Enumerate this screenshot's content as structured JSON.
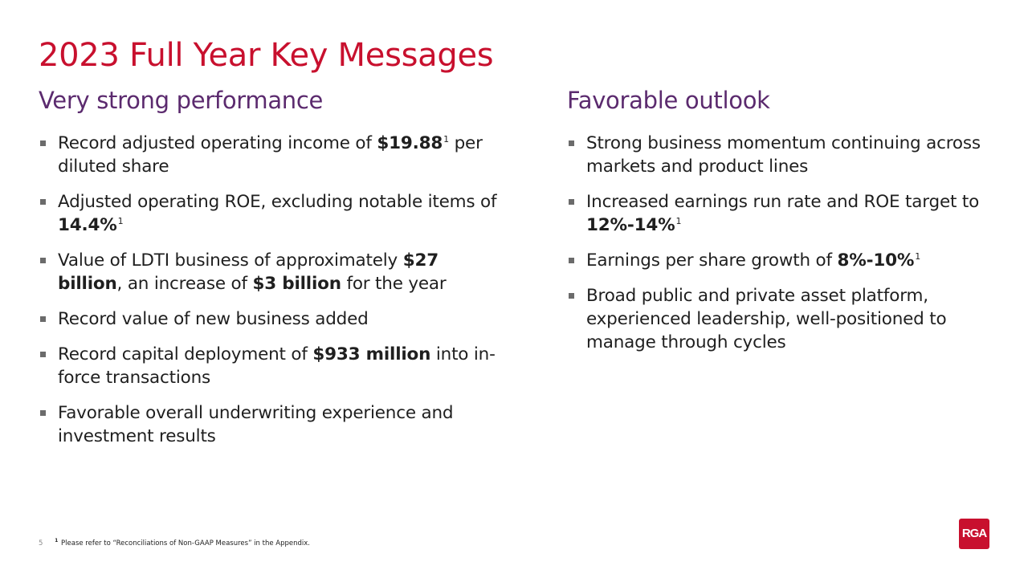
{
  "title": "2023 Full Year Key Messages",
  "left": {
    "heading": "Very strong performance",
    "bullets": [
      {
        "parts": [
          {
            "t": "Record adjusted operating income of "
          },
          {
            "t": "$19.88",
            "b": true
          },
          {
            "t": "1",
            "sup": true
          },
          {
            "t": " per diluted share"
          }
        ]
      },
      {
        "parts": [
          {
            "t": "Adjusted operating ROE, excluding notable items of "
          },
          {
            "t": "14.4%",
            "b": true
          },
          {
            "t": "1",
            "sup": true
          }
        ]
      },
      {
        "parts": [
          {
            "t": "Value of LDTI business of approximately "
          },
          {
            "t": "$27 billion",
            "b": true
          },
          {
            "t": ", an increase of "
          },
          {
            "t": "$3 billion",
            "b": true
          },
          {
            "t": " for the year"
          }
        ]
      },
      {
        "parts": [
          {
            "t": "Record value of new business added"
          }
        ]
      },
      {
        "parts": [
          {
            "t": "Record capital deployment of "
          },
          {
            "t": "$933 million",
            "b": true
          },
          {
            "t": " into in-force transactions"
          }
        ]
      },
      {
        "parts": [
          {
            "t": "Favorable overall underwriting experience and investment results"
          }
        ]
      }
    ]
  },
  "right": {
    "heading": "Favorable outlook",
    "bullets": [
      {
        "parts": [
          {
            "t": "Strong business momentum continuing across markets and product lines"
          }
        ]
      },
      {
        "parts": [
          {
            "t": "Increased earnings run rate and ROE target to "
          },
          {
            "t": "12%-14%",
            "b": true
          },
          {
            "t": "1",
            "sup": true
          }
        ]
      },
      {
        "parts": [
          {
            "t": "Earnings per share growth of "
          },
          {
            "t": "8%-10%",
            "b": true
          },
          {
            "t": "1",
            "sup": true
          }
        ]
      },
      {
        "parts": [
          {
            "t": "Broad public and private asset platform,  experienced leadership, well-positioned to manage through cycles"
          }
        ]
      }
    ]
  },
  "footer": {
    "page_number": "5",
    "footnote_marker": "1",
    "footnote": "Please refer to “Reconciliations  of Non-GAAP Measures” in the Appendix."
  },
  "logo": {
    "text": "RGA",
    "color": "#c8102e"
  },
  "colors": {
    "title": "#c8102e",
    "heading": "#5b2a6e",
    "body": "#1f1f1f"
  }
}
